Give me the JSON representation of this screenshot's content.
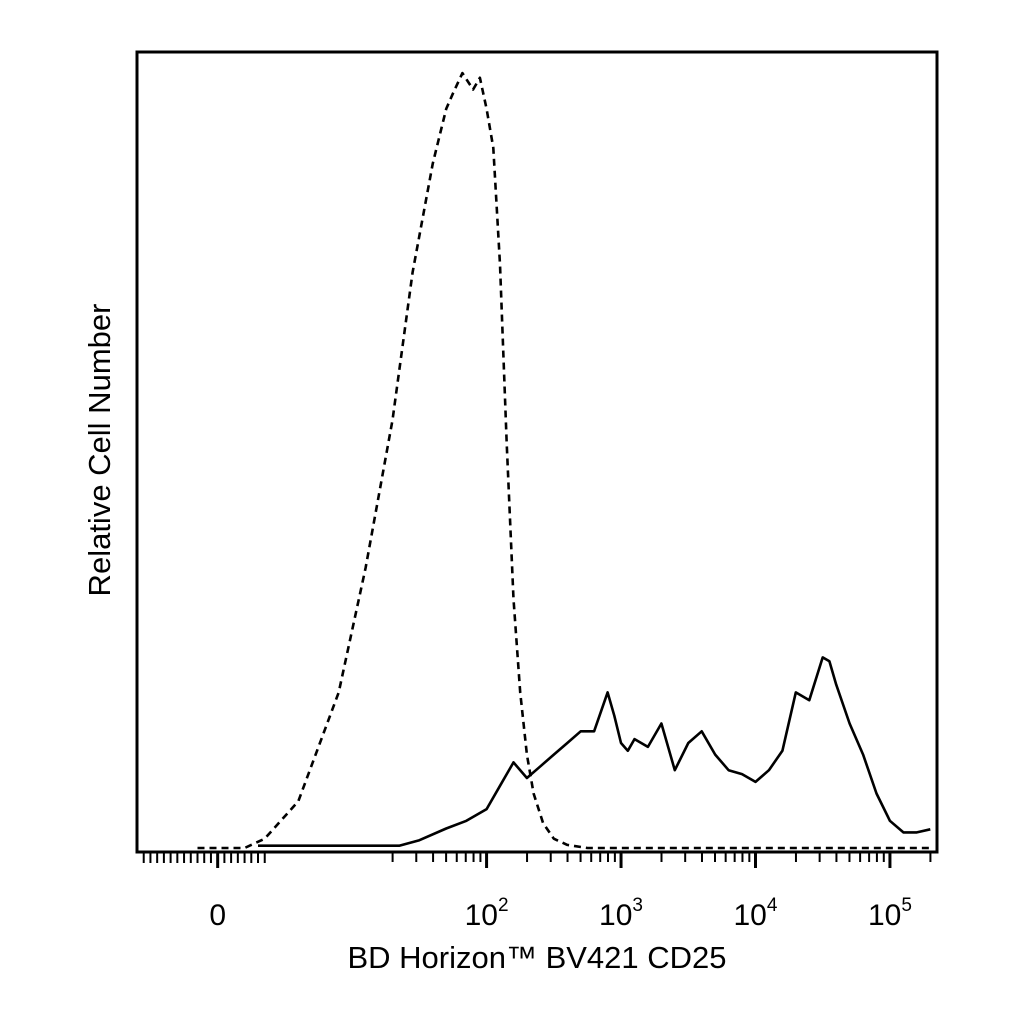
{
  "chart_data": {
    "type": "line",
    "title": "",
    "xlabel": "BD Horizon™ BV421 CD25",
    "ylabel": "Relative Cell Number",
    "x_scale": "biexponential",
    "xlim": [
      -0.6,
      5.35
    ],
    "ylim": [
      0,
      1
    ],
    "grid": false,
    "legend": "none",
    "x_ticks": [
      {
        "value": 0,
        "base": "0",
        "exponent": ""
      },
      {
        "value": 2,
        "base": "10",
        "exponent": "2"
      },
      {
        "value": 3,
        "base": "10",
        "exponent": "3"
      },
      {
        "value": 4,
        "base": "10",
        "exponent": "4"
      },
      {
        "value": 5,
        "base": "10",
        "exponent": "5"
      }
    ],
    "series": [
      {
        "style": "dashed",
        "color": "#000000",
        "x": [
          -0.15,
          0.2,
          0.35,
          0.6,
          0.9,
          1.1,
          1.3,
          1.45,
          1.6,
          1.7,
          1.75,
          1.82,
          1.9,
          1.95,
          2.0,
          2.05,
          2.1,
          2.15,
          2.2,
          2.25,
          2.3,
          2.35,
          2.42,
          2.5,
          2.6,
          2.75,
          3.0,
          3.5,
          4.0,
          4.5,
          5.0,
          5.3
        ],
        "y": [
          0.0,
          0.0,
          0.012,
          0.06,
          0.2,
          0.36,
          0.55,
          0.74,
          0.88,
          0.95,
          0.97,
          0.996,
          0.975,
          0.99,
          0.95,
          0.9,
          0.75,
          0.52,
          0.32,
          0.2,
          0.12,
          0.07,
          0.032,
          0.012,
          0.004,
          0.0,
          0.0,
          0.0,
          0.0,
          0.0,
          0.0,
          0.0
        ]
      },
      {
        "style": "solid",
        "color": "#000000",
        "x": [
          0.3,
          1.35,
          1.5,
          1.7,
          1.85,
          2.0,
          2.1,
          2.2,
          2.3,
          2.4,
          2.5,
          2.6,
          2.7,
          2.8,
          2.9,
          2.95,
          3.0,
          3.05,
          3.1,
          3.2,
          3.3,
          3.4,
          3.5,
          3.6,
          3.7,
          3.8,
          3.9,
          4.0,
          4.1,
          4.2,
          4.3,
          4.4,
          4.5,
          4.55,
          4.6,
          4.7,
          4.8,
          4.9,
          5.0,
          5.1,
          5.2,
          5.3
        ],
        "y": [
          0.003,
          0.003,
          0.01,
          0.025,
          0.035,
          0.05,
          0.08,
          0.11,
          0.09,
          0.105,
          0.12,
          0.135,
          0.15,
          0.15,
          0.2,
          0.17,
          0.135,
          0.125,
          0.14,
          0.13,
          0.16,
          0.1,
          0.135,
          0.15,
          0.12,
          0.1,
          0.095,
          0.085,
          0.1,
          0.125,
          0.2,
          0.19,
          0.245,
          0.24,
          0.21,
          0.16,
          0.12,
          0.07,
          0.035,
          0.02,
          0.02,
          0.024
        ]
      }
    ]
  }
}
